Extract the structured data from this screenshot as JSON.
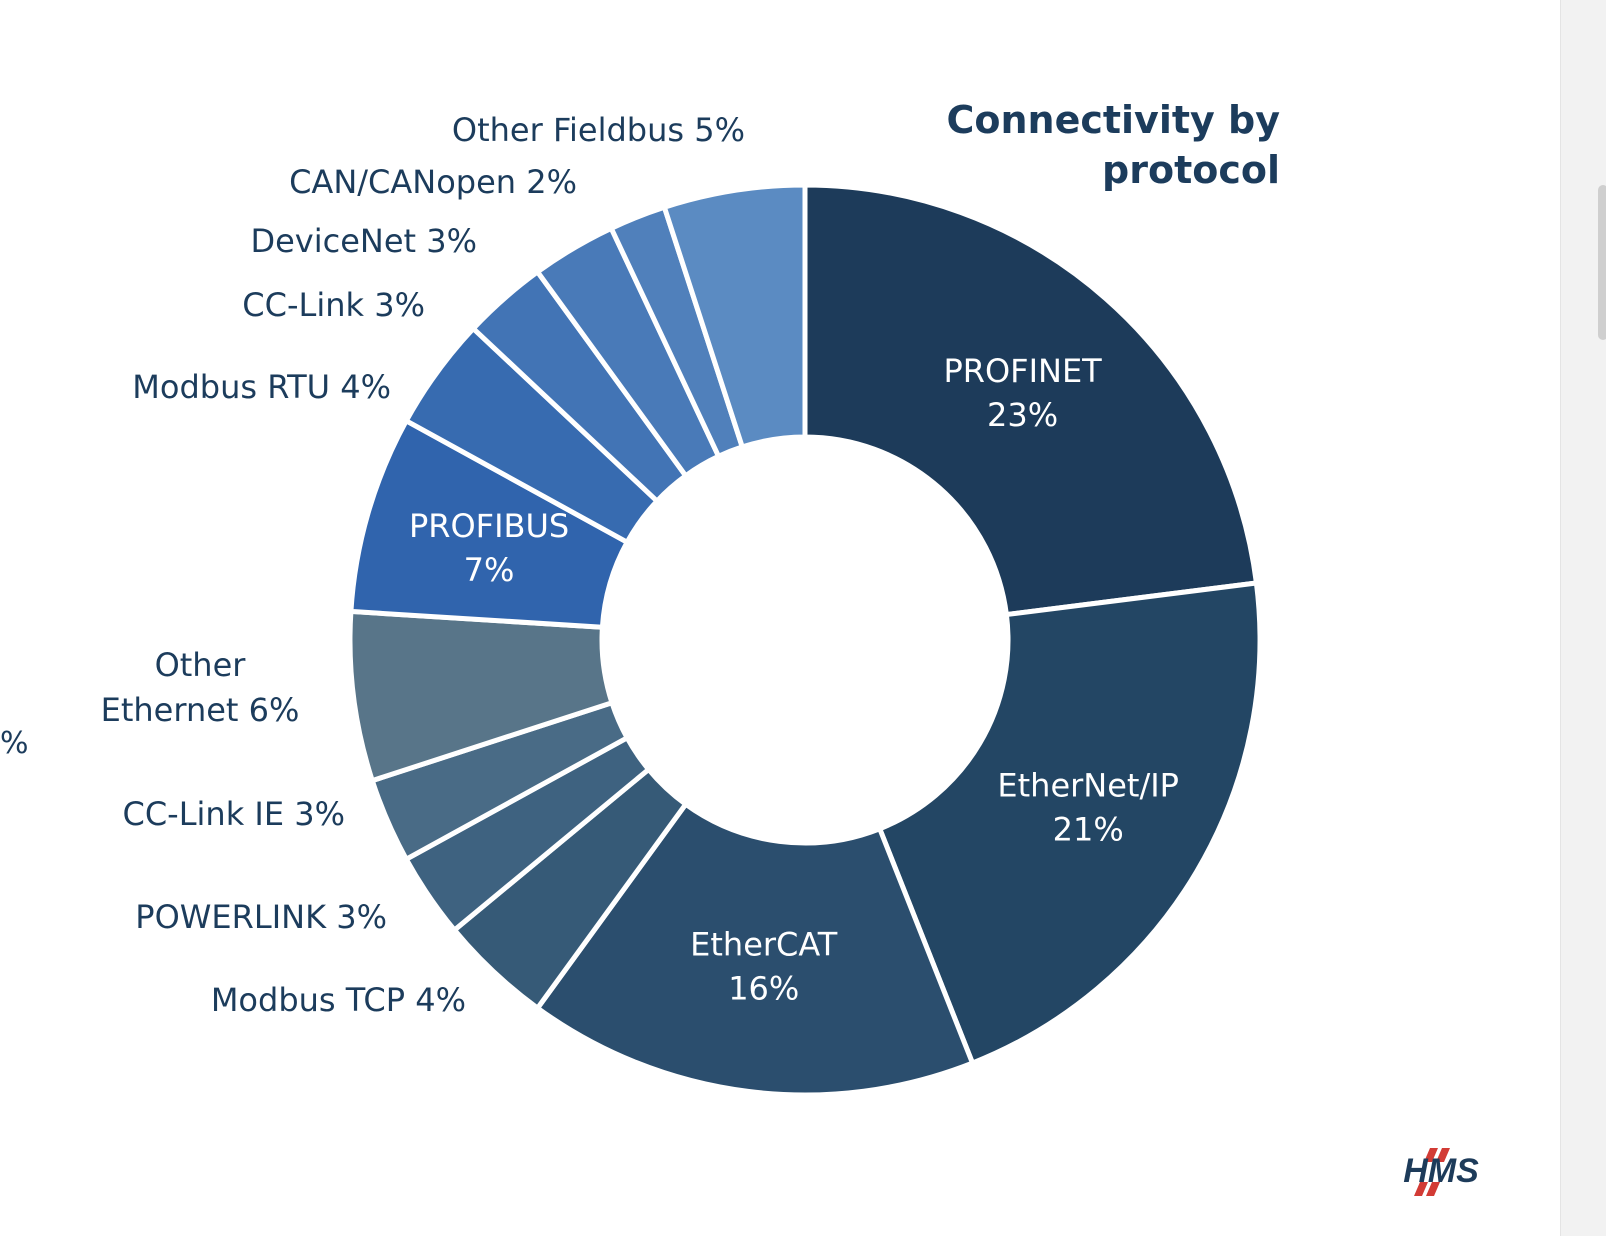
{
  "chart_data": {
    "type": "donut",
    "title_lines": [
      "Connectivity by",
      "protocol"
    ],
    "unit": "%",
    "slices": [
      {
        "label": "PROFINET",
        "value": 23,
        "color": "#1d3b5a",
        "text_color": "#ffffff",
        "label_position": "inside",
        "lines": [
          "PROFINET",
          "23%"
        ]
      },
      {
        "label": "EtherNet/IP",
        "value": 21,
        "color": "#234664",
        "text_color": "#ffffff",
        "label_position": "inside",
        "lines": [
          "EtherNet/IP",
          "21%"
        ]
      },
      {
        "label": "EtherCAT",
        "value": 16,
        "color": "#2b4e6e",
        "text_color": "#ffffff",
        "label_position": "inside",
        "lines": [
          "EtherCAT",
          "16%"
        ]
      },
      {
        "label": "Modbus TCP",
        "value": 4,
        "color": "#365a77",
        "text_color": "#1c3c5c",
        "label_position": "outside-left",
        "lines": [
          "Modbus TCP 4%"
        ]
      },
      {
        "label": "POWERLINK",
        "value": 3,
        "color": "#3e6280",
        "text_color": "#1c3c5c",
        "label_position": "outside-left",
        "lines": [
          "POWERLINK 3%"
        ]
      },
      {
        "label": "CC-Link IE",
        "value": 3,
        "color": "#496b86",
        "text_color": "#1c3c5c",
        "label_position": "outside-left",
        "lines": [
          "CC-Link IE 3%"
        ]
      },
      {
        "label": "Other Ethernet",
        "value": 6,
        "color": "#587589",
        "text_color": "#1c3c5c",
        "label_position": "outside-left",
        "lines": [
          "Other",
          "Ethernet 6%"
        ]
      },
      {
        "label": "PROFIBUS",
        "value": 7,
        "color": "#3064ad",
        "text_color": "#ffffff",
        "label_position": "inside",
        "lines": [
          "PROFIBUS",
          "7%"
        ]
      },
      {
        "label": "Modbus RTU",
        "value": 4,
        "color": "#376bb0",
        "text_color": "#1c3c5c",
        "label_position": "outside-left",
        "lines": [
          "Modbus RTU 4%"
        ]
      },
      {
        "label": "CC-Link",
        "value": 3,
        "color": "#4274b5",
        "text_color": "#1c3c5c",
        "label_position": "outside-left",
        "lines": [
          "CC-Link 3%"
        ]
      },
      {
        "label": "DeviceNet",
        "value": 3,
        "color": "#497ab8",
        "text_color": "#1c3c5c",
        "label_position": "outside-left",
        "lines": [
          "DeviceNet 3%"
        ]
      },
      {
        "label": "CAN/CANopen",
        "value": 2,
        "color": "#5080bb",
        "text_color": "#1c3c5c",
        "label_position": "outside-left",
        "lines": [
          "CAN/CANopen 2%"
        ]
      },
      {
        "label": "Other Fieldbus",
        "value": 5,
        "color": "#5b8bc2",
        "text_color": "#1c3c5c",
        "label_position": "outside-top",
        "lines": [
          "Other Fieldbus 5%"
        ]
      }
    ],
    "cut_off_label": "%",
    "logo": {
      "text": "HMS",
      "mark_color": "#d23b35",
      "text_color": "#1d3b5a"
    }
  }
}
